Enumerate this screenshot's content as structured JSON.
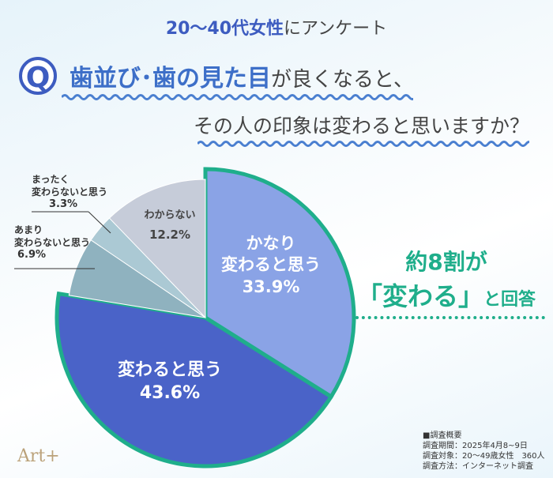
{
  "header": {
    "subtitle_highlight": "20〜40代女性",
    "subtitle_rest": "にアンケート",
    "q_icon": "Q",
    "question_highlight": "歯並び･歯の見た目",
    "question_rest": "が良くなると、",
    "question_line2": "その人の印象は変わると思いますか？"
  },
  "chart_data": {
    "type": "pie",
    "title": "歯並び・歯の見た目が良くなると、その人の印象は変わると思いますか？",
    "start": "top",
    "direction": "clockwise",
    "slices": [
      {
        "label": "かなり変わると思う",
        "label_lines": [
          "かなり",
          "変わると思う"
        ],
        "value": 33.9,
        "display": "33.9%",
        "color": "#8aa3e6",
        "highlight": true
      },
      {
        "label": "変わると思う",
        "label_lines": [
          "変わると思う"
        ],
        "value": 43.6,
        "display": "43.6%",
        "color": "#4a63c8",
        "highlight": true
      },
      {
        "label": "あまり変わらないと思う",
        "label_lines": [
          "あまり",
          "変わらないと思う"
        ],
        "value": 6.9,
        "display": "6.9%",
        "color": "#8fb2bf",
        "highlight": false
      },
      {
        "label": "まったく変わらないと思う",
        "label_lines": [
          "まったく",
          "変わらないと思う"
        ],
        "value": 3.3,
        "display": "3.3%",
        "color": "#abc9d4",
        "highlight": false
      },
      {
        "label": "わからない",
        "label_lines": [
          "わからない"
        ],
        "value": 12.2,
        "display": "12.2%",
        "color": "#c6ccd9",
        "highlight": false
      }
    ],
    "highlight_color": "#1fae8b"
  },
  "callout": {
    "line1": "約8割が",
    "line2": "「変わる」",
    "line2_suffix": "と回答"
  },
  "survey": {
    "heading": "■調査概要",
    "period": "調査期間：2025年4月8~9日",
    "target": "調査対象：20〜49歳女性　360人",
    "method": "調査方法：インターネット調査"
  },
  "logo": "Art+"
}
